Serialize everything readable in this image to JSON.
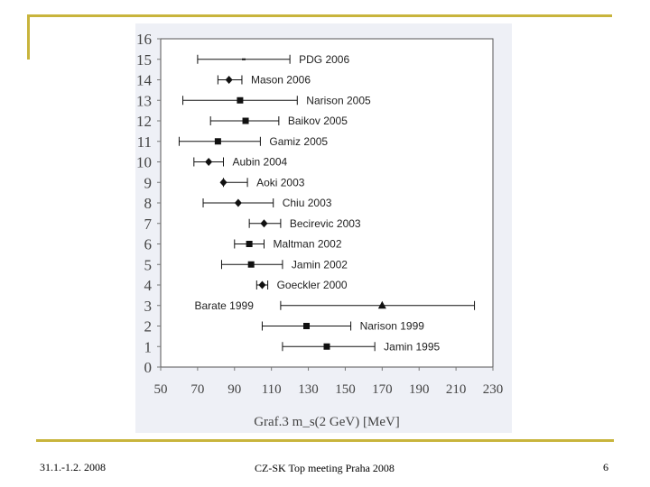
{
  "footer": {
    "date": "31.1.-1.2. 2008",
    "title": "CZ-SK Top meeting Praha 2008",
    "page": "6"
  },
  "chart_data": {
    "type": "scatter",
    "title": "",
    "xlabel": "Graf.3 m_s(2 GeV) [MeV]",
    "ylabel": "",
    "xlim": [
      50,
      230
    ],
    "ylim": [
      0,
      16
    ],
    "x_ticks": [
      50,
      70,
      90,
      110,
      130,
      150,
      170,
      190,
      210,
      230
    ],
    "y_ticks": [
      0,
      1,
      2,
      3,
      4,
      5,
      6,
      7,
      8,
      9,
      10,
      11,
      12,
      13,
      14,
      15,
      16
    ],
    "points": [
      {
        "label": "PDG 2006",
        "y": 15,
        "x": 95,
        "xmin": 70,
        "xmax": 120,
        "marker": "dash"
      },
      {
        "label": "Mason 2006",
        "y": 14,
        "x": 87,
        "xmin": 81,
        "xmax": 94,
        "marker": "diamond"
      },
      {
        "label": "Narison 2005",
        "y": 13,
        "x": 93,
        "xmin": 62,
        "xmax": 124,
        "marker": "square"
      },
      {
        "label": "Baikov 2005",
        "y": 12,
        "x": 96,
        "xmin": 77,
        "xmax": 114,
        "marker": "square"
      },
      {
        "label": "Gamiz 2005",
        "y": 11,
        "x": 81,
        "xmin": 60,
        "xmax": 104,
        "marker": "square"
      },
      {
        "label": "Aubin 2004",
        "y": 10,
        "x": 76,
        "xmin": 68,
        "xmax": 84,
        "marker": "diamond"
      },
      {
        "label": "Aoki 2003",
        "y": 9,
        "x": 84,
        "xmin": 84,
        "xmax": 97,
        "marker": "diamond"
      },
      {
        "label": "Chiu 2003",
        "y": 8,
        "x": 92,
        "xmin": 73,
        "xmax": 111,
        "marker": "diamond"
      },
      {
        "label": "Becirevic 2003",
        "y": 7,
        "x": 106,
        "xmin": 98,
        "xmax": 115,
        "marker": "diamond"
      },
      {
        "label": "Maltman 2002",
        "y": 6,
        "x": 98,
        "xmin": 90,
        "xmax": 106,
        "marker": "square"
      },
      {
        "label": "Jamin 2002",
        "y": 5,
        "x": 99,
        "xmin": 83,
        "xmax": 116,
        "marker": "square"
      },
      {
        "label": "Goeckler 2000",
        "y": 4,
        "x": 105,
        "xmin": 102,
        "xmax": 108,
        "marker": "diamond"
      },
      {
        "label": "Barate 1999",
        "y": 3,
        "x": 170,
        "xmin": 115,
        "xmax": 220,
        "marker": "triangle"
      },
      {
        "label": "Narison 1999",
        "y": 2,
        "x": 129,
        "xmin": 105,
        "xmax": 153,
        "marker": "square"
      },
      {
        "label": "Jamin 1995",
        "y": 1,
        "x": 140,
        "xmin": 116,
        "xmax": 166,
        "marker": "square"
      }
    ]
  }
}
